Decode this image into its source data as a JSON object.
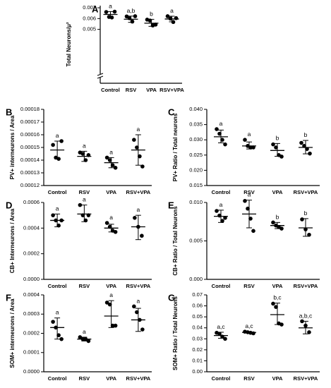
{
  "chart_data": [
    {
      "type": "scatter",
      "panel": "A",
      "ylabel": "Total Neurons/μ²",
      "categories": [
        "Control",
        "RSV",
        "VPA",
        "RSV+VPA"
      ],
      "ylim": [
        0.0,
        0.0072
      ],
      "yticks": [
        "0.005",
        "0.006",
        "0.007"
      ],
      "ytick_values": [
        0.005,
        0.006,
        0.007
      ],
      "axis_break": true,
      "groups": [
        {
          "points": [
            0.00661,
            0.00615,
            0.0061,
            0.00664
          ],
          "mean": 0.00638,
          "sd_low": 0.00611,
          "sd_high": 0.00665,
          "sig": "a"
        },
        {
          "points": [
            0.0062,
            0.00603,
            0.00572,
            0.00622
          ],
          "mean": 0.00594,
          "sd_low": 0.00565,
          "sd_high": 0.00623,
          "sig": "a,b"
        },
        {
          "points": [
            0.0059,
            0.00582,
            0.00536,
            0.00544
          ],
          "mean": 0.00557,
          "sd_low": 0.00528,
          "sd_high": 0.00593,
          "sig": "b"
        },
        {
          "points": [
            0.00622,
            0.006,
            0.00568,
            0.00604
          ],
          "mean": 0.00596,
          "sd_low": 0.0057,
          "sd_high": 0.00622,
          "sig": "a"
        }
      ]
    },
    {
      "type": "scatter",
      "panel": "B",
      "ylabel": "PV+ interneurons / Area",
      "categories": [
        "Control",
        "RSV",
        "VPA",
        "RSV+VPA"
      ],
      "ylim": [
        0.00012,
        0.00018
      ],
      "yticks": [
        "0.00012",
        "0.00013",
        "0.00014",
        "0.00015",
        "0.00016",
        "0.00017",
        "0.00018"
      ],
      "ytick_values": [
        0.00012,
        0.00013,
        0.00014,
        0.00015,
        0.00016,
        0.00017,
        0.00018
      ],
      "axis_break": false,
      "groups": [
        {
          "points": [
            0.000152,
            0.000142,
            0.000141,
            0.000155
          ],
          "mean": 0.000148,
          "sd_low": 0.000141,
          "sd_high": 0.000155,
          "sig": "a"
        },
        {
          "points": [
            0.000146,
            0.000145,
            0.00014,
            0.000144
          ],
          "mean": 0.000143,
          "sd_low": 0.000139,
          "sd_high": 0.000147,
          "sig": "a"
        },
        {
          "points": [
            0.000142,
            0.00014,
            0.000136,
            0.000134
          ],
          "mean": 0.000138,
          "sd_low": 0.000134,
          "sd_high": 0.000142,
          "sig": "a"
        },
        {
          "points": [
            0.000156,
            0.00015,
            0.000143,
            0.000135
          ],
          "mean": 0.000148,
          "sd_low": 0.000136,
          "sd_high": 0.00016,
          "sig": "a"
        }
      ]
    },
    {
      "type": "scatter",
      "panel": "C",
      "ylabel": "PV+ Ratio / Total neurons",
      "categories": [
        "Control",
        "RSV",
        "VPA",
        "RSV+VPA"
      ],
      "ylim": [
        0.015,
        0.04
      ],
      "yticks": [
        "0.015",
        "0.020",
        "0.025",
        "0.030",
        "0.035",
        "0.040"
      ],
      "ytick_values": [
        0.015,
        0.02,
        0.025,
        0.03,
        0.035,
        0.04
      ],
      "axis_break": false,
      "groups": [
        {
          "points": [
            0.0335,
            0.032,
            0.03,
            0.0285
          ],
          "mean": 0.031,
          "sd_low": 0.029,
          "sd_high": 0.0332,
          "sig": "a"
        },
        {
          "points": [
            0.03,
            0.028,
            0.0275,
            0.0275
          ],
          "mean": 0.028,
          "sd_low": 0.027,
          "sd_high": 0.0293,
          "sig": "a"
        },
        {
          "points": [
            0.0285,
            0.0275,
            0.025,
            0.0245
          ],
          "mean": 0.0265,
          "sd_low": 0.0246,
          "sd_high": 0.0288,
          "sig": "b"
        },
        {
          "points": [
            0.029,
            0.028,
            0.027,
            0.0255
          ],
          "mean": 0.0275,
          "sd_low": 0.0254,
          "sd_high": 0.0298,
          "sig": "b"
        }
      ]
    },
    {
      "type": "scatter",
      "panel": "D",
      "ylabel": "CB+ Interneurons / Area",
      "categories": [
        "Control",
        "RSV",
        "VPA",
        "RSV+VPA"
      ],
      "ylim": [
        0.0,
        0.0006
      ],
      "yticks": [
        "0.0000",
        "0.0002",
        "0.0004",
        "0.0006"
      ],
      "ytick_values": [
        0.0,
        0.0002,
        0.0004,
        0.0006
      ],
      "axis_break": false,
      "groups": [
        {
          "points": [
            0.0005,
            0.00046,
            0.00042,
            0.00046
          ],
          "mean": 0.00046,
          "sd_low": 0.00041,
          "sd_high": 0.00051,
          "sig": "a"
        },
        {
          "points": [
            0.00058,
            0.0005,
            0.00046,
            0.0005
          ],
          "mean": 0.00051,
          "sd_low": 0.00045,
          "sd_high": 0.00058,
          "sig": "a"
        },
        {
          "points": [
            0.00044,
            0.00041,
            0.00038,
            0.00037
          ],
          "mean": 0.0004,
          "sd_low": 0.00037,
          "sd_high": 0.00043,
          "sig": "a"
        },
        {
          "points": [
            0.00048,
            0.00041,
            0.00034
          ],
          "mean": 0.00041,
          "sd_low": 0.00031,
          "sd_high": 0.0005,
          "sig": "a"
        }
      ]
    },
    {
      "type": "scatter",
      "panel": "E",
      "ylabel": "CB+ Ratio / Total Neurons",
      "categories": [
        "Control",
        "RSV",
        "VPA",
        "RSV+VPA"
      ],
      "ylim": [
        0.0,
        0.01
      ],
      "yticks": [
        "0.000",
        "0.005",
        "0.010"
      ],
      "ytick_values": [
        0.0,
        0.005,
        0.01
      ],
      "axis_break": false,
      "groups": [
        {
          "points": [
            0.0089,
            0.0083,
            0.0076,
            0.008
          ],
          "mean": 0.0082,
          "sd_low": 0.0074,
          "sd_high": 0.009,
          "sig": "a"
        },
        {
          "points": [
            0.0102,
            0.0092,
            0.0079,
            0.0063
          ],
          "mean": 0.0085,
          "sd_low": 0.0067,
          "sd_high": 0.0103,
          "sig": "a"
        },
        {
          "points": [
            0.0074,
            0.007,
            0.0068,
            0.0066
          ],
          "mean": 0.007,
          "sd_low": 0.0066,
          "sd_high": 0.0074,
          "sig": "b"
        },
        {
          "points": [
            0.0078,
            0.0065,
            0.0058
          ],
          "mean": 0.0067,
          "sd_low": 0.0056,
          "sd_high": 0.0079,
          "sig": "b"
        }
      ]
    },
    {
      "type": "scatter",
      "panel": "F",
      "ylabel": "SOM+ interneurons / Area",
      "categories": [
        "Control",
        "RSV",
        "VPA",
        "RSV+VPA"
      ],
      "ylim": [
        0.0,
        0.0004
      ],
      "yticks": [
        "0.0000",
        "0.0001",
        "0.0002",
        "0.0003",
        "0.0004"
      ],
      "ytick_values": [
        0.0,
        0.0001,
        0.0002,
        0.0003,
        0.0004
      ],
      "axis_break": false,
      "groups": [
        {
          "points": [
            0.00026,
            0.00023,
            0.00019,
            0.00017
          ],
          "mean": 0.00023,
          "sd_low": 0.00017,
          "sd_high": 0.00028,
          "sig": "a"
        },
        {
          "points": [
            0.00018,
            0.00017,
            0.00017,
            0.00016
          ],
          "mean": 0.00017,
          "sd_low": 0.00016,
          "sd_high": 0.00018,
          "sig": "a"
        },
        {
          "points": [
            0.00036,
            0.00035,
            0.00024,
            0.00024
          ],
          "mean": 0.00029,
          "sd_low": 0.00023,
          "sd_high": 0.00037,
          "sig": "a"
        },
        {
          "points": [
            0.00034,
            0.00031,
            0.00027,
            0.00022
          ],
          "mean": 0.00027,
          "sd_low": 0.00021,
          "sd_high": 0.00033,
          "sig": "a"
        }
      ]
    },
    {
      "type": "scatter",
      "panel": "G",
      "ylabel": "SOM+ Ratio / Total Neurons",
      "categories": [
        "Control",
        "RSV",
        "VPA",
        "RSV+VPA"
      ],
      "ylim": [
        0.0,
        0.07
      ],
      "yticks": [
        "0.00",
        "0.01",
        "0.02",
        "0.03",
        "0.04",
        "0.05",
        "0.06",
        "0.07"
      ],
      "ytick_values": [
        0.0,
        0.01,
        0.02,
        0.03,
        0.04,
        0.05,
        0.06,
        0.07
      ],
      "axis_break": false,
      "groups": [
        {
          "points": [
            0.0355,
            0.0345,
            0.032,
            0.03
          ],
          "mean": 0.033,
          "sd_low": 0.0305,
          "sd_high": 0.036,
          "sig": "a,c"
        },
        {
          "points": [
            0.0365,
            0.036,
            0.0355,
            0.035
          ],
          "mean": 0.0358,
          "sd_low": 0.035,
          "sd_high": 0.0366,
          "sig": "a,c"
        },
        {
          "points": [
            0.062,
            0.059,
            0.044,
            0.043
          ],
          "mean": 0.052,
          "sd_low": 0.043,
          "sd_high": 0.0625,
          "sig": "b,c"
        },
        {
          "points": [
            0.046,
            0.042,
            0.036
          ],
          "mean": 0.04,
          "sd_low": 0.0345,
          "sd_high": 0.046,
          "sig": "a,b,c"
        }
      ]
    }
  ]
}
